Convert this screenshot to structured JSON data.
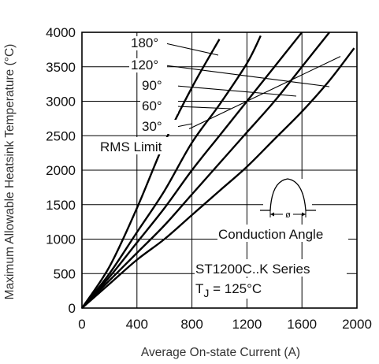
{
  "chart_data": {
    "type": "line",
    "title": "",
    "xlabel": "Average On-state Current (A)",
    "ylabel": "Maximum Allowable Heatsink Temperature (°C)",
    "xlim": [
      0,
      2000
    ],
    "ylim": [
      0,
      4000
    ],
    "x_ticks": [
      "0",
      "400",
      "800",
      "1200",
      "1600",
      "2000"
    ],
    "y_ticks": [
      "0",
      "500",
      "1000",
      "1500",
      "2000",
      "2500",
      "3000",
      "3500",
      "4000"
    ],
    "grid": true,
    "series": [
      {
        "name": "180°",
        "x": [
          0,
          200,
          400,
          600,
          800,
          1000
        ],
        "y": [
          0,
          600,
          1450,
          2400,
          3200,
          3900
        ]
      },
      {
        "name": "120°",
        "x": [
          0,
          200,
          400,
          600,
          800,
          1000,
          1200,
          1300
        ],
        "y": [
          0,
          500,
          1100,
          1700,
          2400,
          2950,
          3550,
          3950
        ]
      },
      {
        "name": "90°",
        "x": [
          0,
          200,
          400,
          600,
          800,
          1000,
          1200,
          1400,
          1600
        ],
        "y": [
          0,
          450,
          950,
          1450,
          2000,
          2500,
          3000,
          3500,
          4000
        ]
      },
      {
        "name": "60°",
        "x": [
          0,
          200,
          400,
          600,
          800,
          1000,
          1200,
          1400,
          1600,
          1800
        ],
        "y": [
          0,
          400,
          800,
          1200,
          1650,
          2100,
          2550,
          3000,
          3500,
          4000
        ]
      },
      {
        "name": "30°",
        "x": [
          0,
          200,
          400,
          600,
          800,
          1000,
          1200,
          1400,
          1600,
          1800,
          1980
        ],
        "y": [
          0,
          350,
          700,
          1000,
          1350,
          1700,
          2050,
          2450,
          2850,
          3300,
          3770
        ]
      }
    ],
    "rms_limit": {
      "label": "RMS Limit",
      "x": [
        780,
        1880
      ],
      "y": [
        2600,
        3650
      ]
    },
    "annotations": {
      "conduction_angle": "Conduction Angle",
      "phi_symbol": "ø",
      "series_name": "ST1200C..K Series",
      "tj_prefix": "T",
      "tj_subscript": "J",
      "tj_value": " = 125°C"
    }
  }
}
